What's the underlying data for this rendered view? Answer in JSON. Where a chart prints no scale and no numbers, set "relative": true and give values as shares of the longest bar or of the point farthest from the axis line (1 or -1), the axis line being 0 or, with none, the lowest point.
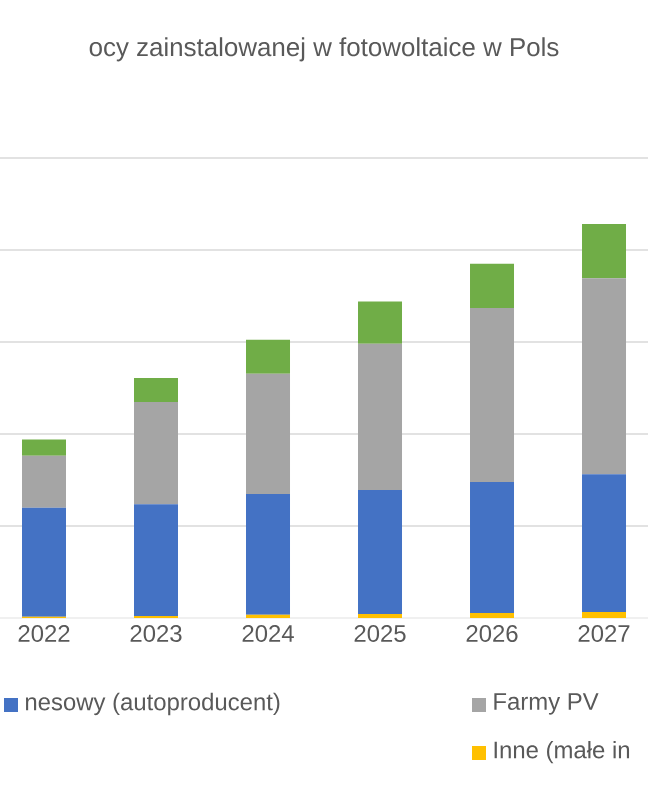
{
  "chart_data": {
    "type": "bar",
    "title": "ocy zainstalowanej w fotowoltaice w Pols",
    "categories": [
      "2022",
      "2023",
      "2024",
      "2025",
      "2026",
      "2027"
    ],
    "stacked": true,
    "relative": true,
    "grid": "y",
    "legend": "bottom",
    "tick_labels": "x",
    "series": [
      {
        "name": "Inne (małe in",
        "color": "#ffc000",
        "values": [
          0.003,
          0.005,
          0.008,
          0.01,
          0.013,
          0.015
        ]
      },
      {
        "name": "nesowy (autoproducent)",
        "color": "#4472c4",
        "values": [
          0.277,
          0.284,
          0.307,
          0.315,
          0.332,
          0.35
        ]
      },
      {
        "name": "Farmy PV",
        "color": "#a5a5a5",
        "values": [
          0.132,
          0.259,
          0.305,
          0.371,
          0.442,
          0.497
        ]
      },
      {
        "color": "#70ad47",
        "values": [
          0.041,
          0.061,
          0.086,
          0.107,
          0.112,
          0.138
        ]
      }
    ]
  }
}
